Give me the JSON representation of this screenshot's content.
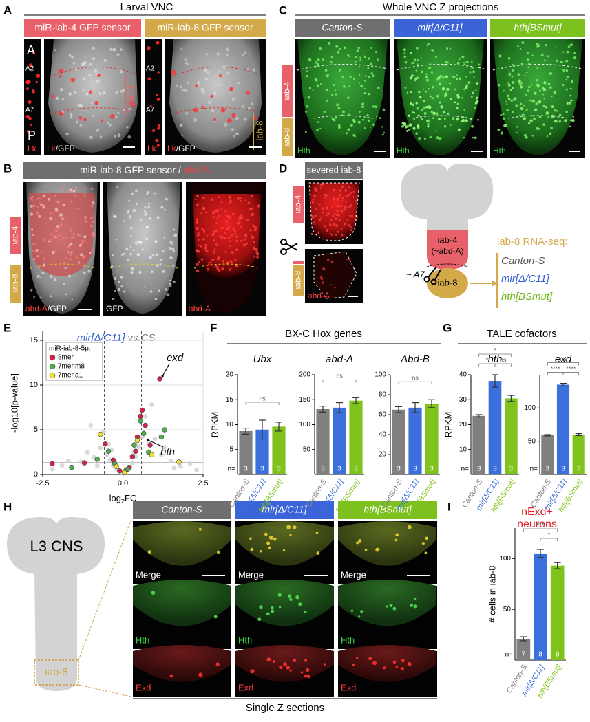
{
  "figure": {
    "panel_labels": [
      "A",
      "B",
      "C",
      "D",
      "E",
      "F",
      "G",
      "H",
      "I"
    ],
    "a": {
      "title": "Larval VNC",
      "sensors": [
        "miR-iab-4 GFP sensor",
        "miR-iab-8 GFP sensor"
      ],
      "poles": [
        "A",
        "P"
      ],
      "segments": [
        "A2",
        "A7"
      ],
      "stain": "Lk",
      "stain_suffix": "/GFP",
      "regions": [
        "iab-4",
        "iab-8"
      ]
    },
    "b": {
      "title": "miR-iab-8 GFP sensor / ",
      "title_stain": "abd-A",
      "channels": [
        "abd-A",
        "/GFP",
        "GFP"
      ],
      "regions": [
        "iab-4",
        "iab-8"
      ]
    },
    "c": {
      "title": "Whole VNC Z projections",
      "genotypes": [
        "Canton-S",
        "mir[Δ/C11]",
        "hth[BSmut]"
      ],
      "stain": "Hth",
      "regions": [
        "iab-4",
        "iab-8"
      ]
    },
    "d": {
      "title": "severed iab-8",
      "regions": [
        "iab-4",
        "iab-8"
      ],
      "stain": "abd-A",
      "schematic": {
        "anterior": "iab-4",
        "anterior_note": "(~abd-A)",
        "posterior": "iab-8",
        "cut": "~ A7",
        "assay": "iab-8 RNA-seq:",
        "genotypes": [
          "Canton-S",
          "mir[Δ/C11]",
          "hth[BSmut]"
        ]
      }
    },
    "f": {
      "title": "BX-C Hox genes"
    },
    "g": {
      "title": "TALE cofactors"
    },
    "h": {
      "schematic": "L3 CNS",
      "region": "iab-8",
      "genotypes": [
        "Canton-S",
        "mir[Δ/C11]",
        "hth[BSmut]"
      ],
      "channels": [
        "Merge",
        "Hth",
        "Exd"
      ],
      "caption": "Single Z sections"
    }
  },
  "chart_data": [
    {
      "type": "scatter",
      "title": "mir[Δ/C11]",
      "title_suffix": "vs.CS",
      "xlabel": [
        "log",
        "2",
        "FC"
      ],
      "ylabel": "-log10[p-value]",
      "legend_title": "miR-iab-8-5p:",
      "legend": "upper left",
      "xlim": [
        -2.5,
        2.5
      ],
      "xticks": [
        -2.5,
        {
          "value": 0,
          "label": "0.0"
        },
        2.5
      ],
      "ylim": [
        0,
        16
      ],
      "yticks": [
        0,
        5,
        10,
        15
      ],
      "grid": true,
      "thresholds_x": [
        -0.58,
        0.58
      ],
      "threshold_y": 1.3,
      "annotations": [
        {
          "text": "exd",
          "x": 1.15,
          "y": 10.7
        },
        {
          "text": "hth",
          "x": 0.7,
          "y": 4.0
        }
      ],
      "series": [
        {
          "color": "#cfcfcf",
          "x": [
            -2.2,
            -1.9,
            -1.6,
            -1.3,
            -1.1,
            -0.9,
            -0.7,
            -0.5,
            -0.4,
            -0.3,
            -0.2,
            -0.1,
            0,
            0.1,
            0.2,
            0.3,
            0.4,
            0.5,
            0.6,
            0.8,
            1.0,
            1.2,
            1.5,
            1.8,
            2.1,
            -1.0,
            -0.6,
            0.7,
            0.9,
            1.3,
            -0.8,
            -0.45,
            0.45,
            0.35,
            -0.35,
            1.6,
            -1.7,
            2.3,
            0.25,
            -0.25
          ],
          "values": [
            0.6,
            1.0,
            0.8,
            1.4,
            2.5,
            1.9,
            3.0,
            2.2,
            1.6,
            1.0,
            0.6,
            0.3,
            0.1,
            0.3,
            0.8,
            1.3,
            2.0,
            3.1,
            4.2,
            3.6,
            4.0,
            2.2,
            1.5,
            0.9,
            1.2,
            5.5,
            4.8,
            6.5,
            7.8,
            3.0,
            1.0,
            3.4,
            3.2,
            2.5,
            2.7,
            0.7,
            1.5,
            0.5,
            1.9,
            1.4
          ]
        },
        {
          "name": "8mer",
          "color": "#d6204a",
          "x": [
            1.15,
            0.6,
            0.45,
            -0.55,
            0.7,
            0.3,
            -0.3,
            0.2,
            -1.2,
            -2.2,
            0.55,
            0.85,
            0.1,
            -0.1,
            0.4
          ],
          "values": [
            10.7,
            7.2,
            4.2,
            3.4,
            5.5,
            2.0,
            1.6,
            0.8,
            1.3,
            1.2,
            6.5,
            3.3,
            0.5,
            0.4,
            2.6
          ]
        },
        {
          "name": "7mer.m8",
          "color": "#4cae4c",
          "x": [
            1.3,
            0.55,
            0.65,
            -0.45,
            0.35,
            -0.25,
            0.15,
            -1.6,
            0.8,
            1.2,
            -0.8
          ],
          "values": [
            5.0,
            6.0,
            4.6,
            2.6,
            3.3,
            1.2,
            0.6,
            0.8,
            2.5,
            4.2,
            1.7
          ]
        },
        {
          "name": "7mer.a1",
          "color": "#f0e030",
          "x": [
            -0.7,
            0.45,
            0.9,
            1.75,
            -0.2,
            0.05
          ],
          "values": [
            4.5,
            3.8,
            2.2,
            1.4,
            0.9,
            0.2
          ]
        }
      ]
    },
    {
      "type": "bar",
      "title": "Ubx",
      "ylabel": "RPKM",
      "n_label": "n=",
      "categories": [
        "Canton-S",
        "mir[Δ/C11]",
        "hth[BSmut]"
      ],
      "colors": [
        "#808080",
        "#3b6fdc",
        "#7fc31c"
      ],
      "values": [
        8.7,
        9.0,
        9.6
      ],
      "errors": [
        0.6,
        1.9,
        0.9
      ],
      "n": [
        3,
        3,
        3
      ],
      "ylim": [
        0,
        20
      ],
      "yticks": [
        5,
        10,
        15,
        20
      ],
      "brackets": [
        {
          "from": 0,
          "to": 2,
          "label": "ns"
        }
      ]
    },
    {
      "type": "bar",
      "title": "abd-A",
      "categories": [
        "Canton-S",
        "mir[Δ/C11]",
        "hth[BSmut]"
      ],
      "colors": [
        "#808080",
        "#3b6fdc",
        "#7fc31c"
      ],
      "values": [
        131,
        134,
        148
      ],
      "errors": [
        6,
        10,
        6
      ],
      "n": [
        3,
        3,
        3
      ],
      "ylim": [
        0,
        200
      ],
      "yticks": [
        50,
        100,
        150,
        200
      ],
      "brackets": [
        {
          "from": 0,
          "to": 2,
          "label": "ns"
        }
      ]
    },
    {
      "type": "bar",
      "title": "Abd-B",
      "categories": [
        "Canton-S",
        "mir[Δ/C11]",
        "hth[BSmut]"
      ],
      "colors": [
        "#808080",
        "#3b6fdc",
        "#7fc31c"
      ],
      "values": [
        65,
        67,
        71
      ],
      "errors": [
        3,
        5,
        4
      ],
      "n": [
        3,
        3,
        3
      ],
      "ylim": [
        0,
        100
      ],
      "yticks": [
        20,
        40,
        60,
        80,
        100
      ],
      "brackets": [
        {
          "from": 0,
          "to": 2,
          "label": "ns"
        }
      ]
    },
    {
      "type": "bar",
      "title": "hth",
      "ylabel": "RPKM",
      "n_label": "n=",
      "categories": [
        "Canton-S",
        "mir[Δ/C11]",
        "hth[BSmut]"
      ],
      "colors": [
        "#808080",
        "#3b6fdc",
        "#7fc31c"
      ],
      "values": [
        23.5,
        37.5,
        30.5
      ],
      "errors": [
        0.5,
        2.5,
        1.2
      ],
      "n": [
        3,
        3,
        3
      ],
      "ylim": [
        0,
        40
      ],
      "yticks": [
        10,
        20,
        30,
        40
      ],
      "brackets": [
        {
          "from": 0,
          "to": 1,
          "label": "*"
        },
        {
          "from": 1,
          "to": 2,
          "label": "ns"
        },
        {
          "from": 0,
          "to": 2,
          "label": "*"
        }
      ]
    },
    {
      "type": "bar",
      "title": "exd",
      "n_label": "n=",
      "categories": [
        "Canton-S",
        "mir[Δ/C11]",
        "hth[BSmut]"
      ],
      "colors": [
        "#808080",
        "#3b6fdc",
        "#7fc31c"
      ],
      "values": [
        59,
        135,
        60
      ],
      "errors": [
        1,
        2,
        1.5
      ],
      "n": [
        3,
        3,
        3
      ],
      "ylim": [
        0,
        150
      ],
      "yticks": [
        50,
        100
      ],
      "brackets": [
        {
          "from": 0,
          "to": 1,
          "label": "****"
        },
        {
          "from": 1,
          "to": 2,
          "label": "****"
        },
        {
          "from": 0,
          "to": 2,
          "label": "ns"
        }
      ]
    },
    {
      "type": "bar",
      "title": [
        "nExd+",
        "neurons"
      ],
      "ylabel": "# cells in iab-8",
      "n_label": "n=",
      "categories": [
        "Canton-S",
        "mir[Δ/C11]",
        "hth[BSmut]"
      ],
      "colors": [
        "#808080",
        "#3b6fdc",
        "#7fc31c"
      ],
      "values": [
        21,
        105,
        93
      ],
      "errors": [
        2,
        4,
        3
      ],
      "n": [
        7,
        8,
        9
      ],
      "ylim": [
        0,
        130
      ],
      "yticks": [
        50,
        100
      ],
      "brackets": [
        {
          "from": 1,
          "to": 2,
          "label": "*"
        },
        {
          "from": 0,
          "to": 2,
          "label": "***"
        }
      ]
    }
  ]
}
